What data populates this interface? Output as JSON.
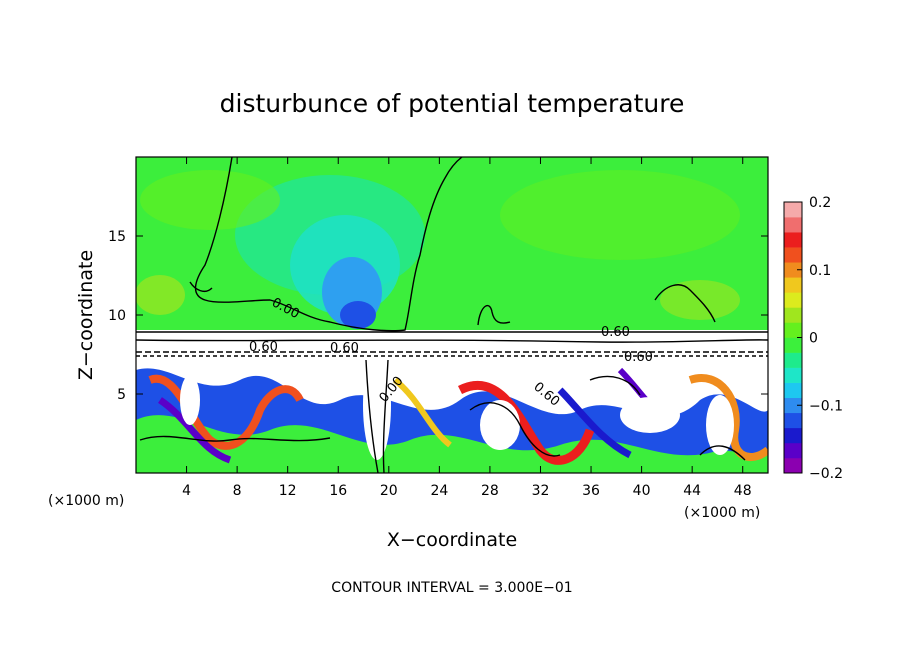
{
  "chart_data": {
    "type": "heatmap",
    "title": "disturbunce of potential temperature",
    "xlabel": "X−coordinate",
    "ylabel": "Z−coordinate",
    "x_unit_left": "(×1000 m)",
    "x_unit_right": "(×1000 m)",
    "xlim": [
      0,
      50
    ],
    "ylim": [
      0,
      20
    ],
    "x_ticks": [
      4,
      8,
      12,
      16,
      20,
      24,
      28,
      32,
      36,
      40,
      44,
      48
    ],
    "y_ticks": [
      5,
      10,
      15
    ],
    "x_tick_labels": [
      "4",
      "8",
      "12",
      "16",
      "20",
      "24",
      "28",
      "32",
      "36",
      "40",
      "44",
      "48"
    ],
    "y_tick_labels": [
      "5",
      "10",
      "15"
    ],
    "colorbar": {
      "min": -0.2,
      "max": 0.2,
      "tick_labels": [
        "0.2",
        "0.1",
        "0",
        "−0.1",
        "−0.2"
      ],
      "tick_values": [
        0.2,
        0.1,
        0,
        -0.1,
        -0.2
      ],
      "colors": [
        "#8b00b0",
        "#5a00c8",
        "#1a1acd",
        "#1e50e6",
        "#2e8cf0",
        "#1ec8f0",
        "#1ee6c8",
        "#1eeb8c",
        "#3cf03c",
        "#64f01e",
        "#a0e61e",
        "#dceb1e",
        "#f0c81e",
        "#f08c1e",
        "#f0501e",
        "#eb1e1e",
        "#f06e6e",
        "#f5aaaa"
      ]
    },
    "contour_labels": [
      "0.00",
      "0.00",
      "0.60",
      "0.60",
      "0.60",
      "0.60",
      "0.60"
    ],
    "contour_interval_text": "CONTOUR INTERVAL = 3.000E−01",
    "grid": false,
    "legend": "colorbar right"
  }
}
